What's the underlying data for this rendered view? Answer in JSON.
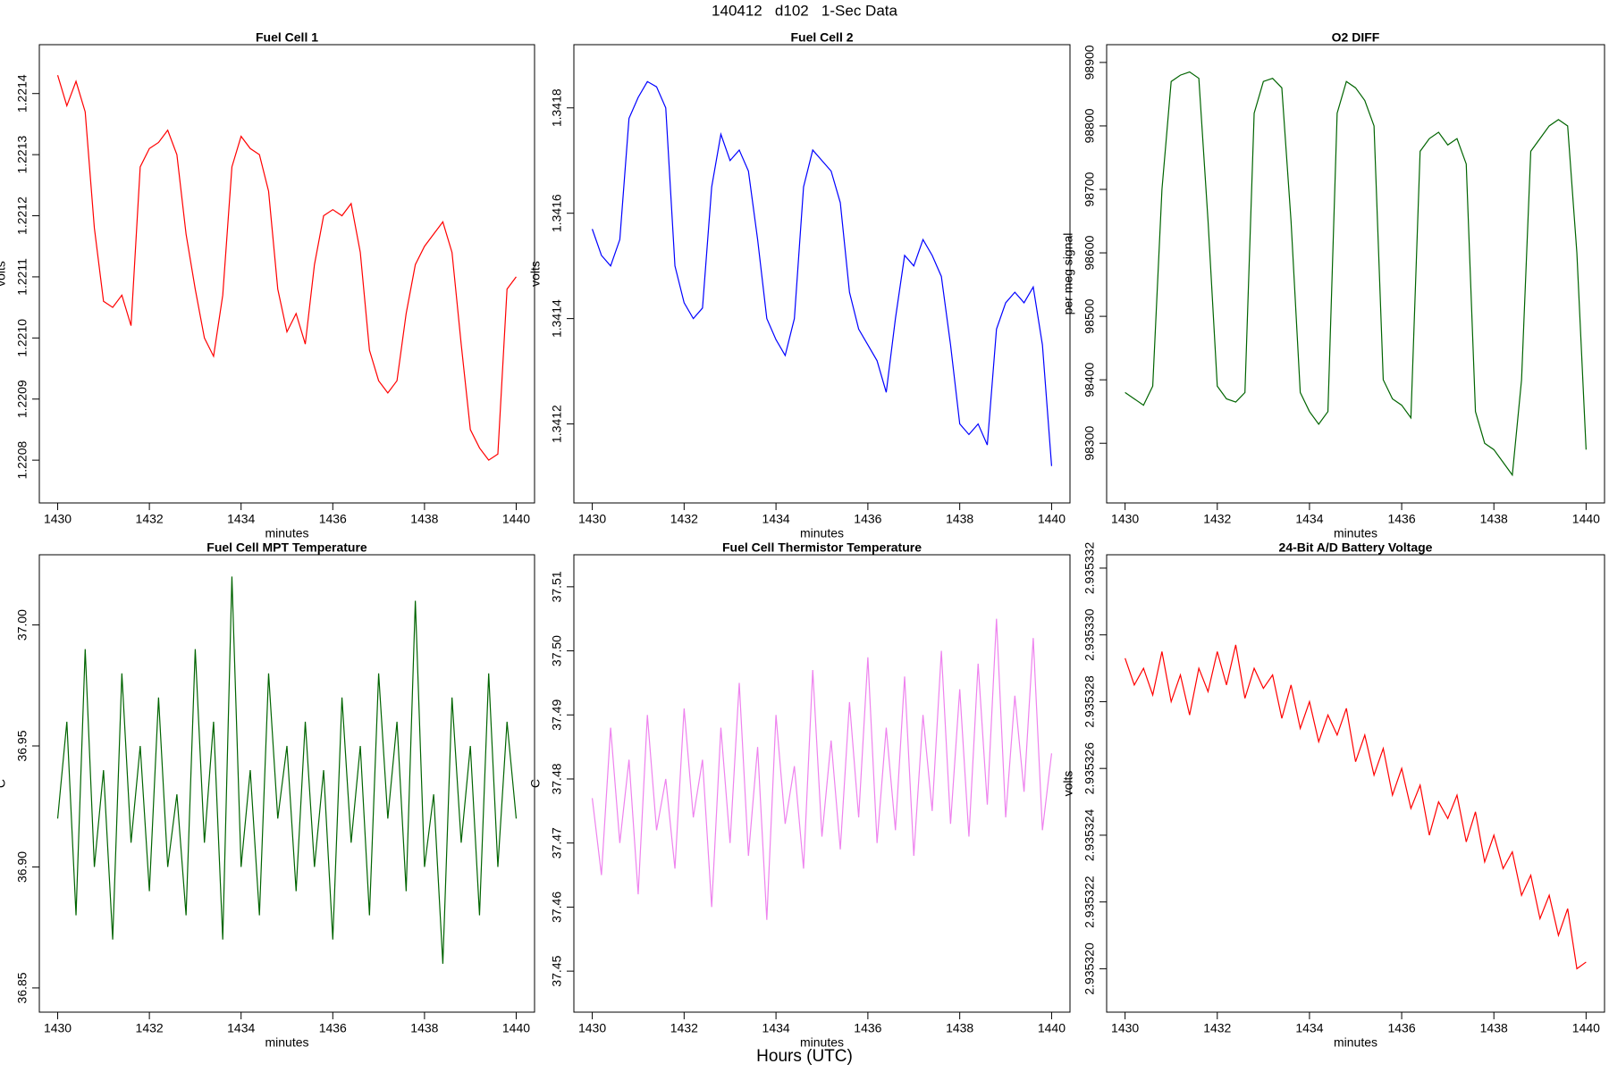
{
  "title": "140412   d102   1-Sec Data",
  "x_label": "Hours (UTC)",
  "chart_data": [
    {
      "type": "line",
      "title": "Fuel Cell 1",
      "x_label": "minutes",
      "y_label": "volts",
      "color": "#ff0000",
      "x": [
        1430,
        1430.2,
        1430.4,
        1430.6,
        1430.8,
        1431,
        1431.2,
        1431.4,
        1431.6,
        1431.8,
        1432,
        1432.2,
        1432.4,
        1432.6,
        1432.8,
        1433,
        1433.2,
        1433.4,
        1433.6,
        1433.8,
        1434,
        1434.2,
        1434.4,
        1434.6,
        1434.8,
        1435,
        1435.2,
        1435.4,
        1435.6,
        1435.8,
        1436,
        1436.2,
        1436.4,
        1436.6,
        1436.8,
        1437,
        1437.2,
        1437.4,
        1437.6,
        1437.8,
        1438,
        1438.2,
        1438.4,
        1438.6,
        1438.8,
        1439,
        1439.2,
        1439.4,
        1439.6,
        1439.8,
        1440
      ],
      "values": [
        1.22143,
        1.22138,
        1.22142,
        1.22137,
        1.22118,
        1.22106,
        1.22105,
        1.22107,
        1.22102,
        1.22128,
        1.22131,
        1.22132,
        1.22134,
        1.2213,
        1.22117,
        1.22108,
        1.221,
        1.22097,
        1.22107,
        1.22128,
        1.22133,
        1.22131,
        1.2213,
        1.22124,
        1.22108,
        1.22101,
        1.22104,
        1.22099,
        1.22112,
        1.2212,
        1.22121,
        1.2212,
        1.22122,
        1.22114,
        1.22098,
        1.22093,
        1.22091,
        1.22093,
        1.22104,
        1.22112,
        1.22115,
        1.22117,
        1.22119,
        1.22114,
        1.22099,
        1.22085,
        1.22082,
        1.2208,
        1.22081,
        1.22108,
        1.2211
      ],
      "xlim": [
        1429.6,
        1440.4
      ],
      "xticks": [
        1430,
        1432,
        1434,
        1436,
        1438,
        1440
      ],
      "ylim": [
        1.22073,
        1.22148
      ],
      "yticks": [
        {
          "value": 1.2208,
          "label": "1.2208"
        },
        1.2209,
        {
          "value": 1.221,
          "label": "1.2210"
        },
        1.2211,
        1.2212,
        1.2213,
        1.2214
      ]
    },
    {
      "type": "line",
      "title": "Fuel Cell 2",
      "x_label": "minutes",
      "y_label": "volts",
      "color": "#0000ff",
      "x": [
        1430,
        1430.2,
        1430.4,
        1430.6,
        1430.8,
        1431,
        1431.2,
        1431.4,
        1431.6,
        1431.8,
        1432,
        1432.2,
        1432.4,
        1432.6,
        1432.8,
        1433,
        1433.2,
        1433.4,
        1433.6,
        1433.8,
        1434,
        1434.2,
        1434.4,
        1434.6,
        1434.8,
        1435,
        1435.2,
        1435.4,
        1435.6,
        1435.8,
        1436,
        1436.2,
        1436.4,
        1436.6,
        1436.8,
        1437,
        1437.2,
        1437.4,
        1437.6,
        1437.8,
        1438,
        1438.2,
        1438.4,
        1438.6,
        1438.8,
        1439,
        1439.2,
        1439.4,
        1439.6,
        1439.8,
        1440
      ],
      "values": [
        1.34157,
        1.34152,
        1.3415,
        1.34155,
        1.34178,
        1.34182,
        1.34185,
        1.34184,
        1.3418,
        1.3415,
        1.34143,
        1.3414,
        1.34142,
        1.34165,
        1.34175,
        1.3417,
        1.34172,
        1.34168,
        1.34155,
        1.3414,
        1.34136,
        1.34133,
        1.3414,
        1.34165,
        1.34172,
        1.3417,
        1.34168,
        1.34162,
        1.34145,
        1.34138,
        1.34135,
        1.34132,
        1.34126,
        1.3414,
        1.34152,
        1.3415,
        1.34155,
        1.34152,
        1.34148,
        1.34135,
        1.3412,
        1.34118,
        1.3412,
        1.34116,
        1.34138,
        1.34143,
        1.34145,
        1.34143,
        1.34146,
        1.34135,
        1.34112
      ],
      "xlim": [
        1429.6,
        1440.4
      ],
      "xticks": [
        1430,
        1432,
        1434,
        1436,
        1438,
        1440
      ],
      "ylim": [
        1.34105,
        1.34192
      ],
      "yticks": [
        1.3412,
        1.3414,
        1.3416,
        1.3418
      ]
    },
    {
      "type": "line",
      "title": "O2 DIFF",
      "x_label": "minutes",
      "y_label": "per meg signal",
      "color": "#006400",
      "x": [
        1430,
        1430.2,
        1430.4,
        1430.6,
        1430.8,
        1431,
        1431.2,
        1431.4,
        1431.6,
        1431.8,
        1432,
        1432.2,
        1432.4,
        1432.6,
        1432.8,
        1433,
        1433.2,
        1433.4,
        1433.6,
        1433.8,
        1434,
        1434.2,
        1434.4,
        1434.6,
        1434.8,
        1435,
        1435.2,
        1435.4,
        1435.6,
        1435.8,
        1436,
        1436.2,
        1436.4,
        1436.6,
        1436.8,
        1437,
        1437.2,
        1437.4,
        1437.6,
        1437.8,
        1438,
        1438.2,
        1438.4,
        1438.6,
        1438.8,
        1439,
        1439.2,
        1439.4,
        1439.6,
        1439.8,
        1440
      ],
      "values": [
        98380,
        98370,
        98360,
        98390,
        98700,
        98870,
        98880,
        98885,
        98875,
        98650,
        98390,
        98370,
        98365,
        98380,
        98820,
        98870,
        98875,
        98860,
        98650,
        98380,
        98350,
        98330,
        98350,
        98820,
        98870,
        98860,
        98840,
        98800,
        98400,
        98370,
        98360,
        98340,
        98760,
        98780,
        98790,
        98770,
        98780,
        98740,
        98350,
        98300,
        98290,
        98270,
        98250,
        98400,
        98760,
        98780,
        98800,
        98810,
        98800,
        98600,
        98290
      ],
      "xlim": [
        1429.6,
        1440.4
      ],
      "xticks": [
        1430,
        1432,
        1434,
        1436,
        1438,
        1440
      ],
      "ylim": [
        98206,
        98928
      ],
      "yticks": [
        98300,
        98400,
        98500,
        98600,
        98700,
        98800,
        98900
      ]
    },
    {
      "type": "line",
      "title": "Fuel Cell MPT Temperature",
      "x_label": "minutes",
      "y_label": "C",
      "color": "#006400",
      "x": [
        1430,
        1430.2,
        1430.4,
        1430.6,
        1430.8,
        1431,
        1431.2,
        1431.4,
        1431.6,
        1431.8,
        1432,
        1432.2,
        1432.4,
        1432.6,
        1432.8,
        1433,
        1433.2,
        1433.4,
        1433.6,
        1433.8,
        1434,
        1434.2,
        1434.4,
        1434.6,
        1434.8,
        1435,
        1435.2,
        1435.4,
        1435.6,
        1435.8,
        1436,
        1436.2,
        1436.4,
        1436.6,
        1436.8,
        1437,
        1437.2,
        1437.4,
        1437.6,
        1437.8,
        1438,
        1438.2,
        1438.4,
        1438.6,
        1438.8,
        1439,
        1439.2,
        1439.4,
        1439.6,
        1439.8,
        1440
      ],
      "values": [
        36.92,
        36.96,
        36.88,
        36.99,
        36.9,
        36.94,
        36.87,
        36.98,
        36.91,
        36.95,
        36.89,
        36.97,
        36.9,
        36.93,
        36.88,
        36.99,
        36.91,
        36.96,
        36.87,
        37.02,
        36.9,
        36.94,
        36.88,
        36.98,
        36.92,
        36.95,
        36.89,
        36.96,
        36.9,
        36.94,
        36.87,
        36.97,
        36.91,
        36.95,
        36.88,
        36.98,
        36.92,
        36.96,
        36.89,
        37.01,
        36.9,
        36.93,
        36.86,
        36.97,
        36.91,
        36.95,
        36.88,
        36.98,
        36.9,
        36.96,
        36.92
      ],
      "xlim": [
        1429.6,
        1440.4
      ],
      "xticks": [
        1430,
        1432,
        1434,
        1436,
        1438,
        1440
      ],
      "ylim": [
        36.84,
        37.029
      ],
      "yticks": [
        36.85,
        {
          "value": 36.9,
          "label": "36.90"
        },
        36.95,
        {
          "value": 37,
          "label": "37.00"
        }
      ]
    },
    {
      "type": "line",
      "title": "Fuel Cell Thermistor Temperature",
      "x_label": "minutes",
      "y_label": "C",
      "color": "#ee82ee",
      "x": [
        1430,
        1430.2,
        1430.4,
        1430.6,
        1430.8,
        1431,
        1431.2,
        1431.4,
        1431.6,
        1431.8,
        1432,
        1432.2,
        1432.4,
        1432.6,
        1432.8,
        1433,
        1433.2,
        1433.4,
        1433.6,
        1433.8,
        1434,
        1434.2,
        1434.4,
        1434.6,
        1434.8,
        1435,
        1435.2,
        1435.4,
        1435.6,
        1435.8,
        1436,
        1436.2,
        1436.4,
        1436.6,
        1436.8,
        1437,
        1437.2,
        1437.4,
        1437.6,
        1437.8,
        1438,
        1438.2,
        1438.4,
        1438.6,
        1438.8,
        1439,
        1439.2,
        1439.4,
        1439.6,
        1439.8,
        1440
      ],
      "values": [
        37.477,
        37.465,
        37.488,
        37.47,
        37.483,
        37.462,
        37.49,
        37.472,
        37.48,
        37.466,
        37.491,
        37.474,
        37.483,
        37.46,
        37.488,
        37.47,
        37.495,
        37.468,
        37.485,
        37.458,
        37.49,
        37.473,
        37.482,
        37.466,
        37.497,
        37.471,
        37.486,
        37.469,
        37.492,
        37.474,
        37.499,
        37.47,
        37.488,
        37.472,
        37.496,
        37.468,
        37.49,
        37.475,
        37.5,
        37.473,
        37.494,
        37.471,
        37.498,
        37.476,
        37.505,
        37.474,
        37.493,
        37.478,
        37.502,
        37.472,
        37.484
      ],
      "xlim": [
        1429.6,
        1440.4
      ],
      "xticks": [
        1430,
        1432,
        1434,
        1436,
        1438,
        1440
      ],
      "ylim": [
        37.4436,
        37.515
      ],
      "yticks": [
        37.45,
        37.46,
        37.47,
        37.48,
        37.49,
        {
          "value": 37.5,
          "label": "37.50"
        },
        37.51
      ]
    },
    {
      "type": "line",
      "title": "24-Bit A/D Battery Voltage",
      "x_label": "minutes",
      "y_label": "volts",
      "color": "#ff0000",
      "x": [
        1430,
        1430.2,
        1430.4,
        1430.6,
        1430.8,
        1431,
        1431.2,
        1431.4,
        1431.6,
        1431.8,
        1432,
        1432.2,
        1432.4,
        1432.6,
        1432.8,
        1433,
        1433.2,
        1433.4,
        1433.6,
        1433.8,
        1434,
        1434.2,
        1434.4,
        1434.6,
        1434.8,
        1435,
        1435.2,
        1435.4,
        1435.6,
        1435.8,
        1436,
        1436.2,
        1436.4,
        1436.6,
        1436.8,
        1437,
        1437.2,
        1437.4,
        1437.6,
        1437.8,
        1438,
        1438.2,
        1438.4,
        1438.6,
        1438.8,
        1439,
        1439.2,
        1439.4,
        1439.6,
        1439.8,
        1440
      ],
      "values": [
        2.9353293,
        2.9353285,
        2.935329,
        2.9353282,
        2.9353295,
        2.935328,
        2.9353288,
        2.9353276,
        2.935329,
        2.9353283,
        2.9353295,
        2.9353285,
        2.9353297,
        2.9353281,
        2.935329,
        2.9353284,
        2.9353288,
        2.9353275,
        2.9353285,
        2.9353272,
        2.935328,
        2.9353268,
        2.9353276,
        2.935327,
        2.9353278,
        2.9353262,
        2.935327,
        2.9353258,
        2.9353266,
        2.9353252,
        2.935326,
        2.9353248,
        2.9353255,
        2.935324,
        2.935325,
        2.9353245,
        2.9353252,
        2.9353238,
        2.9353247,
        2.9353232,
        2.935324,
        2.935323,
        2.9353235,
        2.9353222,
        2.9353228,
        2.9353215,
        2.9353222,
        2.935321,
        2.9353218,
        2.93532,
        2.9353202
      ],
      "xlim": [
        1429.6,
        1440.4
      ],
      "xticks": [
        1430,
        1432,
        1434,
        1436,
        1438,
        1440
      ],
      "ylim": [
        2.9353187,
        2.9353324
      ],
      "yticks": [
        {
          "value": 2.93532,
          "label": "2.935320"
        },
        2.935322,
        2.935324,
        2.935326,
        2.935328,
        {
          "value": 2.93533,
          "label": "2.935330"
        },
        2.935332
      ]
    }
  ]
}
